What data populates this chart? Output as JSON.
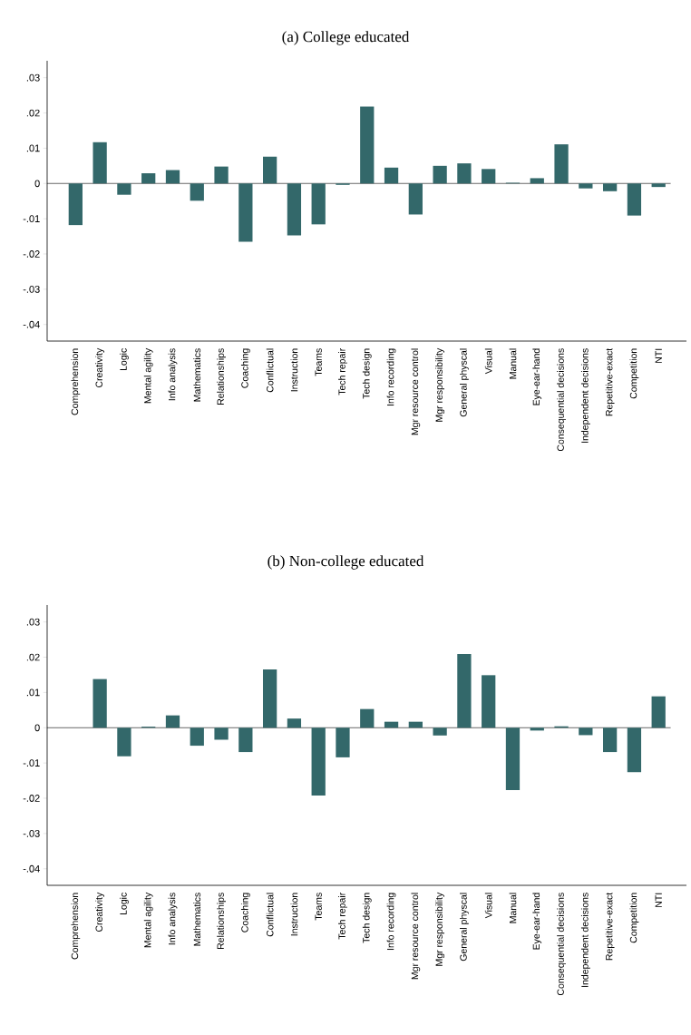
{
  "chart_data": [
    {
      "type": "bar",
      "title": "(a) College educated",
      "categories": [
        "Comprehension",
        "Creativity",
        "Logic",
        "Mental agility",
        "Info analysis",
        "Mathematics",
        "Relationships",
        "Coaching",
        "Conflictual",
        "Instruction",
        "Teams",
        "Tech repair",
        "Tech design",
        "Info recording",
        "Mgr resource control",
        "Mgr responsibility",
        "General physcal",
        "Visual",
        "Manual",
        "Eye-ear-hand",
        "Consequential decisions",
        "Independent decisions",
        "Repetitive-exact",
        "Competition",
        "NTI"
      ],
      "values": [
        -0.0118,
        0.0117,
        -0.0032,
        0.0029,
        0.0038,
        -0.0049,
        0.0048,
        -0.0165,
        0.0076,
        -0.0147,
        -0.0116,
        -0.0004,
        0.0218,
        0.0045,
        -0.0088,
        0.005,
        0.0057,
        0.0041,
        0.0002,
        0.0015,
        0.0111,
        -0.0014,
        -0.0022,
        -0.0091,
        -0.001
      ],
      "color": "#33686a",
      "ylim": [
        -0.0447,
        0.0348
      ],
      "yticks": [
        {
          "value": -0.04,
          "label": "-.04"
        },
        {
          "value": -0.03,
          "label": "-.03"
        },
        {
          "value": -0.02,
          "label": "-.02"
        },
        {
          "value": -0.01,
          "label": "-.01"
        },
        0,
        {
          "value": 0.01,
          "label": ".01"
        },
        {
          "value": 0.02,
          "label": ".02"
        },
        {
          "value": 0.03,
          "label": ".03"
        }
      ],
      "ref_lines": [
        {
          "axis": "y",
          "value": 0
        }
      ]
    },
    {
      "type": "bar",
      "title": "(b) Non-college educated",
      "categories": [
        "Comprehension",
        "Creativity",
        "Logic",
        "Mental agility",
        "Info analysis",
        "Mathematics",
        "Relationships",
        "Coaching",
        "Conflictual",
        "Instruction",
        "Teams",
        "Tech repair",
        "Tech design",
        "Info recording",
        "Mgr resource control",
        "Mgr responsibility",
        "General physcal",
        "Visual",
        "Manual",
        "Eye-ear-hand",
        "Consequential decisions",
        "Independent decisions",
        "Repetitive-exact",
        "Competition",
        "NTI"
      ],
      "values": [
        null,
        0.0138,
        -0.0081,
        0.0003,
        0.0035,
        -0.0051,
        -0.0034,
        -0.0069,
        0.0165,
        0.0026,
        -0.0192,
        -0.0084,
        0.0053,
        0.0017,
        0.0017,
        -0.0022,
        0.0209,
        0.0149,
        -0.0177,
        -0.0008,
        0.0004,
        -0.0021,
        -0.0069,
        -0.0126,
        0.0089
      ],
      "color": "#33686a",
      "ylim": [
        -0.0447,
        0.0348
      ],
      "yticks": [
        {
          "value": -0.04,
          "label": "-.04"
        },
        {
          "value": -0.03,
          "label": "-.03"
        },
        {
          "value": -0.02,
          "label": "-.02"
        },
        {
          "value": -0.01,
          "label": "-.01"
        },
        0,
        {
          "value": 0.01,
          "label": ".01"
        },
        {
          "value": 0.02,
          "label": ".02"
        },
        {
          "value": 0.03,
          "label": ".03"
        }
      ],
      "ref_lines": [
        {
          "axis": "y",
          "value": 0
        }
      ]
    }
  ]
}
